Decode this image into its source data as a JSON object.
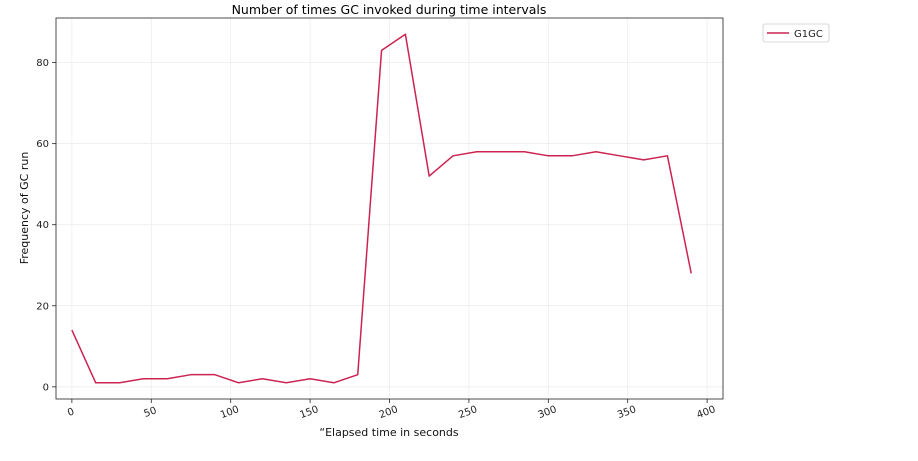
{
  "chart_data": {
    "type": "line",
    "title": "Number of times GC invoked during time intervals",
    "xlabel": "“Elapsed time in seconds",
    "ylabel": "Frequency of GC run",
    "xlim": [
      -10,
      410
    ],
    "ylim": [
      -3,
      91
    ],
    "xticks": [
      0,
      50,
      100,
      150,
      200,
      250,
      300,
      350,
      400
    ],
    "yticks": [
      0,
      20,
      40,
      60,
      80
    ],
    "grid": true,
    "legend_position": "outside-top-right",
    "series": [
      {
        "name": "G1GC",
        "color": "#cc2350",
        "x": [
          0,
          15,
          30,
          45,
          60,
          75,
          90,
          105,
          120,
          135,
          150,
          165,
          180,
          195,
          210,
          225,
          240,
          255,
          270,
          285,
          300,
          315,
          330,
          345,
          360,
          375,
          390
        ],
        "y": [
          14,
          1,
          1,
          2,
          2,
          3,
          3,
          1,
          2,
          1,
          2,
          1,
          3,
          83,
          87,
          52,
          57,
          58,
          58,
          58,
          57,
          57,
          58,
          57,
          56,
          57,
          28
        ]
      }
    ]
  }
}
